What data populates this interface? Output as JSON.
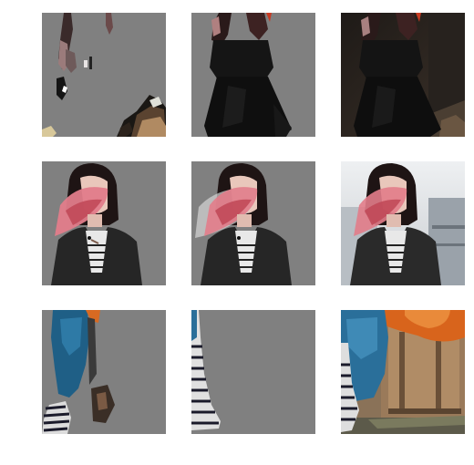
{
  "grid": {
    "rows": 3,
    "columns": 3,
    "background": "#ffffff",
    "mask_gray": "#808080"
  },
  "tiles": [
    {
      "name": "row1-col1-partial-mask",
      "kind": "masked-fragments"
    },
    {
      "name": "row1-col2-person-cutout",
      "kind": "cutout"
    },
    {
      "name": "row1-col3-original",
      "kind": "original"
    },
    {
      "name": "row2-col1-person-cutout",
      "kind": "cutout"
    },
    {
      "name": "row2-col2-person-cutout-soft",
      "kind": "cutout"
    },
    {
      "name": "row2-col3-original",
      "kind": "original"
    },
    {
      "name": "row3-col1-partial-mask",
      "kind": "masked-fragments"
    },
    {
      "name": "row3-col2-leg-cutout",
      "kind": "cutout"
    },
    {
      "name": "row3-col3-original",
      "kind": "original"
    }
  ]
}
